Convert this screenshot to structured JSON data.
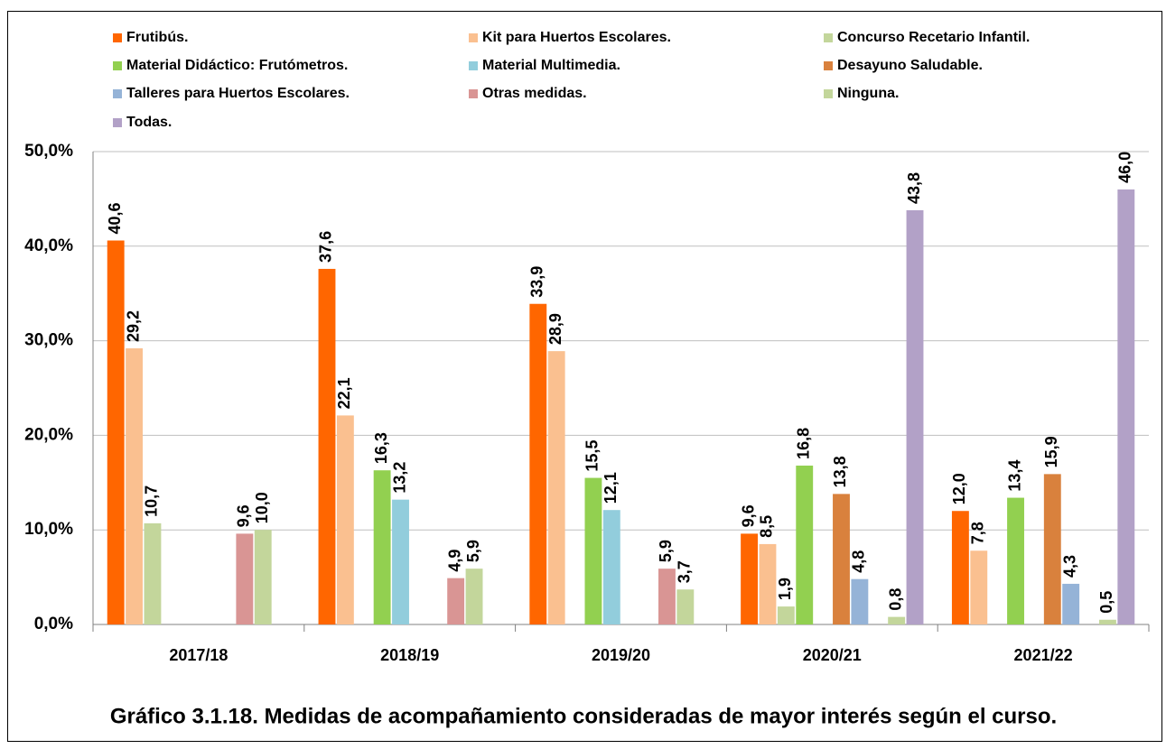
{
  "chart_data": {
    "type": "bar",
    "caption": "Gráfico 3.1.18. Medidas de acompañamiento consideradas de mayor interés según el curso.",
    "categories": [
      "2017/18",
      "2018/19",
      "2019/20",
      "2020/21",
      "2021/22"
    ],
    "series": [
      {
        "name": "Frutibús.",
        "color": "#ff6600",
        "values": [
          40.6,
          37.6,
          33.9,
          9.6,
          12.0
        ],
        "value_labels": [
          "40,6",
          "37,6",
          "33,9",
          "9,6",
          "12,0"
        ]
      },
      {
        "name": "Kit para Huertos Escolares.",
        "color": "#fac090",
        "values": [
          29.2,
          22.1,
          28.9,
          8.5,
          7.8
        ],
        "value_labels": [
          "29,2",
          "22,1",
          "28,9",
          "8,5",
          "7,8"
        ]
      },
      {
        "name": "Concurso Recetario Infantil.",
        "color": "#c3d69b",
        "values": [
          10.7,
          null,
          null,
          1.9,
          null
        ],
        "value_labels": [
          "10,7",
          null,
          null,
          "1,9",
          null
        ]
      },
      {
        "name": "Material Didáctico: Frutómetros.",
        "color": "#92d050",
        "values": [
          null,
          16.3,
          15.5,
          16.8,
          13.4
        ],
        "value_labels": [
          null,
          "16,3",
          "15,5",
          "16,8",
          "13,4"
        ]
      },
      {
        "name": "Material Multimedia.",
        "color": "#92cddc",
        "values": [
          null,
          13.2,
          12.1,
          null,
          null
        ],
        "value_labels": [
          null,
          "13,2",
          "12,1",
          null,
          null
        ]
      },
      {
        "name": "Desayuno Saludable.",
        "color": "#d9813d",
        "values": [
          null,
          null,
          null,
          13.8,
          15.9
        ],
        "value_labels": [
          null,
          null,
          null,
          "13,8",
          "15,9"
        ]
      },
      {
        "name": "Talleres para Huertos Escolares.",
        "color": "#95b3d7",
        "values": [
          null,
          null,
          null,
          4.8,
          4.3
        ],
        "value_labels": [
          null,
          null,
          null,
          "4,8",
          "4,3"
        ]
      },
      {
        "name": "Otras medidas.",
        "color": "#d99594",
        "values": [
          9.6,
          4.9,
          5.9,
          null,
          null
        ],
        "value_labels": [
          "9,6",
          "4,9",
          "5,9",
          null,
          null
        ]
      },
      {
        "name": "Ninguna.",
        "color": "#c3d69b",
        "values": [
          10.0,
          5.9,
          3.7,
          0.8,
          0.5
        ],
        "value_labels": [
          "10,0",
          "5,9",
          "3,7",
          "0,8",
          "0,5"
        ]
      },
      {
        "name": "Todas.",
        "color": "#b2a1c7",
        "values": [
          null,
          null,
          null,
          43.8,
          46.0
        ],
        "value_labels": [
          null,
          null,
          null,
          "43,8",
          "46,0"
        ]
      }
    ],
    "ylim": [
      0,
      50
    ],
    "yticks": [
      {
        "value": 0,
        "label": "0,0%"
      },
      {
        "value": 10,
        "label": "10,0%"
      },
      {
        "value": 20,
        "label": "20,0%"
      },
      {
        "value": 30,
        "label": "30,0%"
      },
      {
        "value": 40,
        "label": "40,0%"
      },
      {
        "value": 50,
        "label": "50,0%"
      }
    ],
    "grid": true
  }
}
